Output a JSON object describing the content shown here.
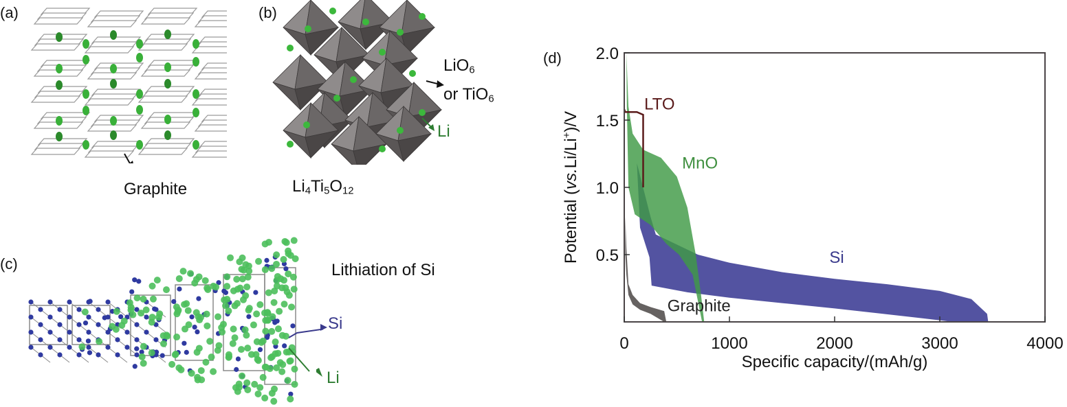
{
  "panels": {
    "a": {
      "label": "(a)",
      "caption": "Graphite",
      "colors": {
        "sheet_fill": "#ffffff",
        "sheet_stroke": "#9a9a9a",
        "li": "#39b039"
      }
    },
    "b": {
      "label": "(b)",
      "formula": {
        "parts": [
          "Li",
          "4",
          "Ti",
          "5",
          "O",
          "12"
        ]
      },
      "octa_label_line1": {
        "main": "LiO",
        "sub": "6"
      },
      "octa_label_line2": {
        "main": "or TiO",
        "sub": "6"
      },
      "li_label": "Li",
      "colors": {
        "octahedron": "#6b6767",
        "octahedron_light": "#8f8b8b",
        "li": "#3cb83c",
        "li_label": "#2e7d32"
      }
    },
    "c": {
      "label": "(c)",
      "title": "Lithiation of Si",
      "si_label": "Si",
      "li_label": "Li",
      "colors": {
        "si": "#2f3aa0",
        "li": "#4cbf5c",
        "bond": "#8a8a8a",
        "si_label": "#3a3a8c",
        "li_label": "#2e7d32"
      }
    },
    "d": {
      "label": "(d)"
    }
  },
  "chart_data": {
    "type": "area",
    "title": "",
    "xlabel": "Specific capacity/(mAh/g)",
    "ylabel": "Potential (vs.Li/Li+)/V",
    "ylabel_parts": [
      "Potential (",
      "vs.",
      "Li/Li",
      "+",
      ")/V"
    ],
    "xlim": [
      0,
      4000
    ],
    "ylim": [
      0,
      2.0
    ],
    "xticks": [
      0,
      1000,
      2000,
      3000,
      4000
    ],
    "xtick_labels": [
      "0",
      "1000",
      "2000",
      "3000",
      "4000"
    ],
    "yticks": [
      0.5,
      1.0,
      1.5,
      2.0
    ],
    "ytick_labels": [
      "0.5",
      "1.0",
      "1.5",
      "2.0"
    ],
    "grid": false,
    "legend": "none (inline labels)",
    "series": [
      {
        "name": "Graphite",
        "color": "#5e5a58",
        "label_color": "#222222",
        "label_at": [
          410,
          0.08
        ],
        "upper": [
          [
            10,
            0.78
          ],
          [
            20,
            0.55
          ],
          [
            40,
            0.28
          ],
          [
            80,
            0.2
          ],
          [
            150,
            0.14
          ],
          [
            250,
            0.11
          ],
          [
            380,
            0.08
          ],
          [
            400,
            0.0
          ]
        ],
        "lower": [
          [
            380,
            0.0
          ],
          [
            250,
            0.06
          ],
          [
            150,
            0.09
          ],
          [
            80,
            0.13
          ],
          [
            40,
            0.2
          ],
          [
            20,
            0.35
          ],
          [
            10,
            0.5
          ]
        ]
      },
      {
        "name": "Si",
        "color": "#4a4a9c",
        "label_color": "#3a3a8c",
        "label_at": [
          1950,
          0.44
        ],
        "upper": [
          [
            120,
            1.18
          ],
          [
            250,
            0.78
          ],
          [
            300,
            0.65
          ],
          [
            700,
            0.5
          ],
          [
            1000,
            0.44
          ],
          [
            1500,
            0.37
          ],
          [
            2000,
            0.32
          ],
          [
            2500,
            0.28
          ],
          [
            3000,
            0.23
          ],
          [
            3300,
            0.17
          ],
          [
            3450,
            0.06
          ],
          [
            3460,
            0.0
          ]
        ],
        "lower": [
          [
            3130,
            0.0
          ],
          [
            2800,
            0.03
          ],
          [
            2000,
            0.1
          ],
          [
            1500,
            0.14
          ],
          [
            1000,
            0.18
          ],
          [
            600,
            0.22
          ],
          [
            260,
            0.27
          ],
          [
            240,
            0.48
          ],
          [
            150,
            0.7
          ]
        ]
      },
      {
        "name": "MnO",
        "color": "#3f9a45",
        "label_color": "#3f8f3f",
        "label_at": [
          550,
          1.14
        ],
        "upper": [
          [
            20,
            2.0
          ],
          [
            40,
            1.6
          ],
          [
            80,
            1.4
          ],
          [
            180,
            1.28
          ],
          [
            350,
            1.22
          ],
          [
            500,
            1.08
          ],
          [
            600,
            0.85
          ],
          [
            680,
            0.5
          ],
          [
            730,
            0.2
          ],
          [
            760,
            0.0
          ]
        ],
        "lower": [
          [
            740,
            0.0
          ],
          [
            650,
            0.35
          ],
          [
            520,
            0.5
          ],
          [
            400,
            0.58
          ],
          [
            250,
            0.72
          ],
          [
            100,
            0.8
          ],
          [
            40,
            1.0
          ],
          [
            25,
            1.6
          ]
        ]
      },
      {
        "name": "LTO",
        "color": "#5a1a1a",
        "label_color": "#5a1a1a",
        "label_at": [
          190,
          1.58
        ],
        "line": [
          [
            0,
            1.58
          ],
          [
            10,
            1.56
          ],
          [
            120,
            1.56
          ],
          [
            180,
            1.54
          ],
          [
            180,
            1.0
          ]
        ]
      }
    ]
  }
}
